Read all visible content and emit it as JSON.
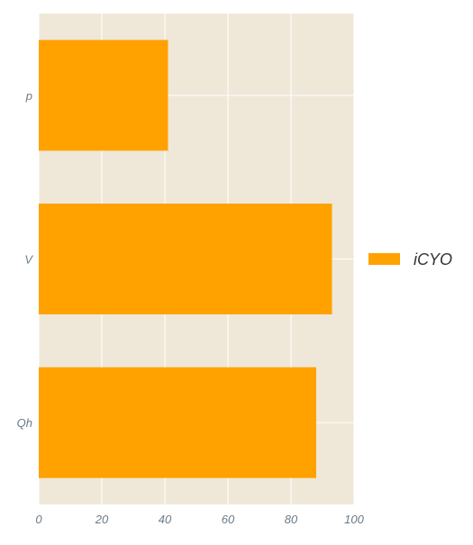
{
  "chart_data": {
    "type": "bar",
    "orientation": "horizontal",
    "categories": [
      "p",
      "V",
      "Qh"
    ],
    "series": [
      {
        "name": "iCYO",
        "values": [
          41,
          93,
          88
        ],
        "color": "#ffa200"
      }
    ],
    "xlim": [
      0,
      100
    ],
    "xticks": [
      "0",
      "20",
      "40",
      "60",
      "80",
      "100"
    ],
    "grid": true,
    "legend_position": "right",
    "background_color": "#efe8d8",
    "grid_color": "#ffffff",
    "tick_label_color": "#6b7c88"
  }
}
